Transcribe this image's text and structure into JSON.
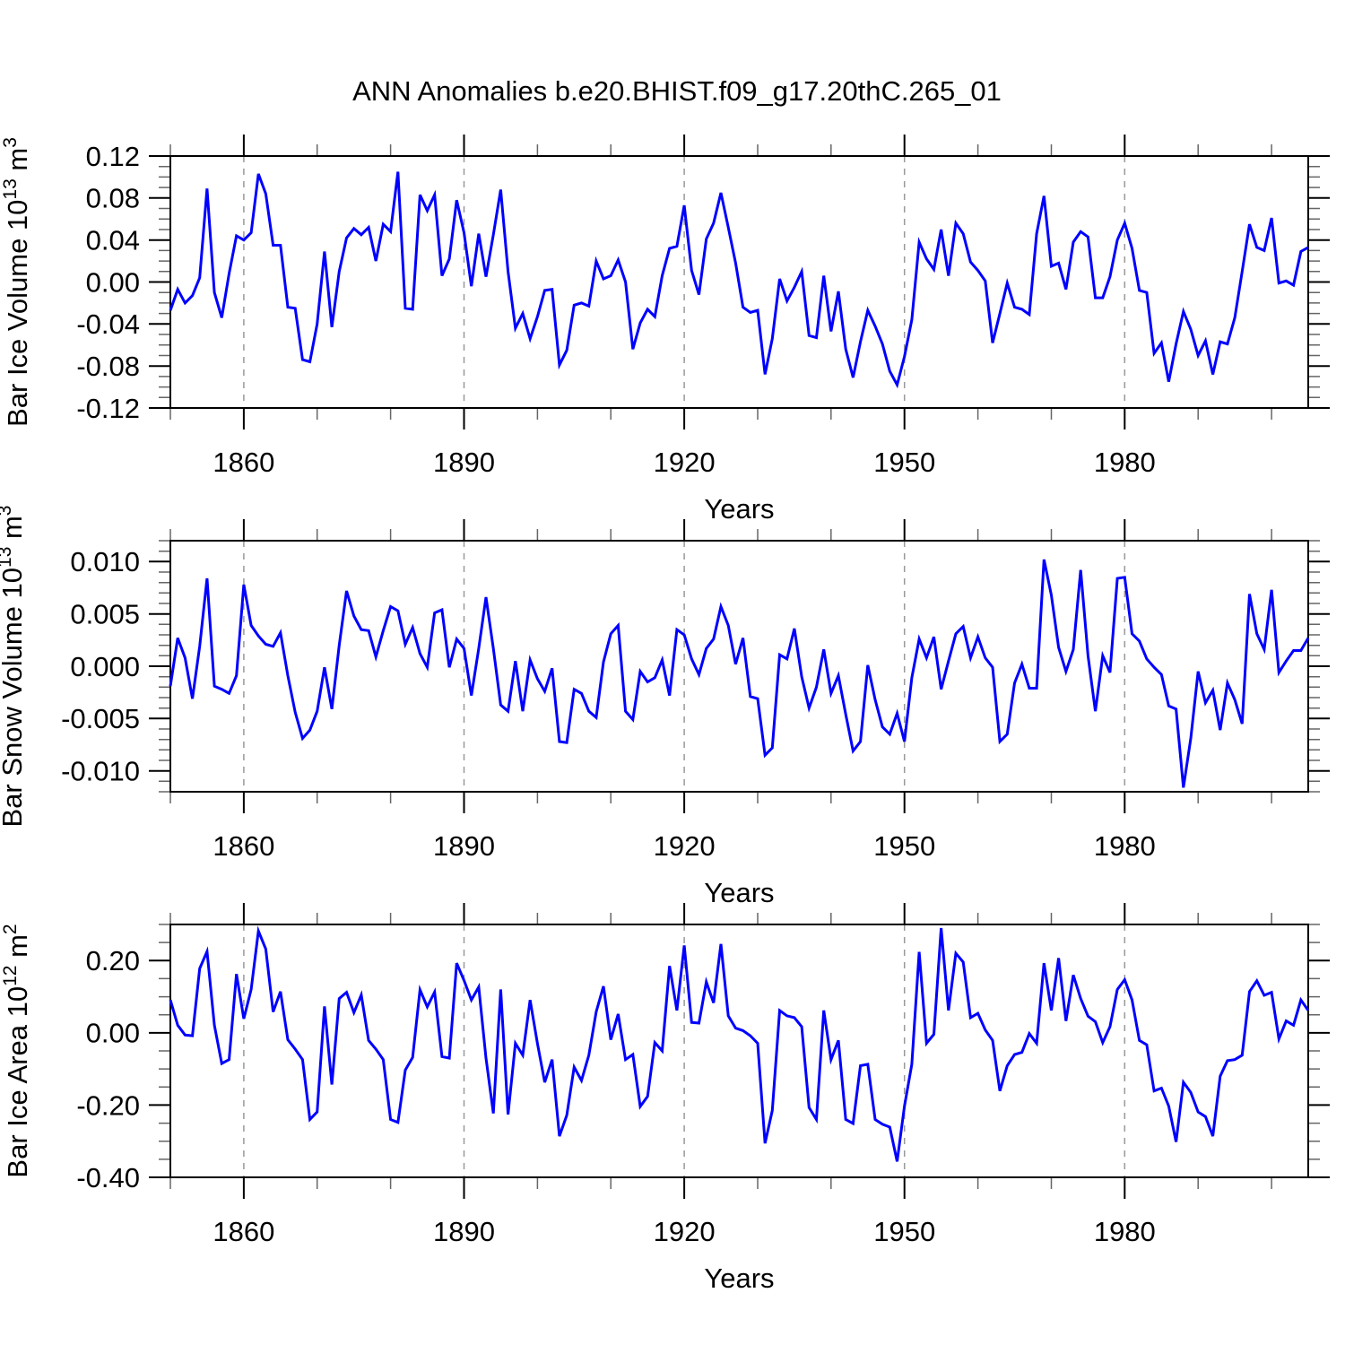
{
  "title": "ANN Anomalies b.e20.BHIST.f09_g17.20thC.265_01",
  "colors": {
    "line": "#0000ff",
    "frame": "#000000",
    "major_tick": "#000000",
    "minor_tick": "#666666",
    "grid": "#999999",
    "background": "#ffffff",
    "text": "#000000"
  },
  "chart_data": [
    {
      "type": "line",
      "series_name": "Bar Ice Volume",
      "ylabel": "Bar Ice Volume 10^13 m^3",
      "ylabel_segments": [
        {
          "t": "Bar Ice Volume 10",
          "sup": false
        },
        {
          "t": "13",
          "sup": true
        },
        {
          "t": " m",
          "sup": false
        },
        {
          "t": "3",
          "sup": true
        }
      ],
      "xlabel": "Years",
      "x_start": 1850,
      "x_end": 2005,
      "x_step": 1,
      "xlim": [
        1850,
        2005
      ],
      "ylim": [
        -0.12,
        0.12
      ],
      "yticks": [
        0.12,
        0.08,
        0.04,
        0.0,
        -0.04,
        -0.08,
        -0.12
      ],
      "ytick_labels": [
        "0.12",
        "0.08",
        "0.04",
        "0.00",
        "-0.04",
        "-0.08",
        "-0.12"
      ],
      "y_minor_step": 0.01,
      "xticks": [
        1860,
        1890,
        1920,
        1950,
        1980
      ],
      "xtick_labels": [
        "1860",
        "1890",
        "1920",
        "1950",
        "1980"
      ],
      "x_minor_step": 10,
      "grid": "dashed vertical lines at major x ticks",
      "values": [
        -0.027,
        -0.007,
        -0.02,
        -0.013,
        0.004,
        0.089,
        -0.01,
        -0.034,
        0.008,
        0.044,
        0.04,
        0.047,
        0.103,
        0.084,
        0.035,
        0.035,
        -0.024,
        -0.025,
        -0.074,
        -0.076,
        -0.04,
        0.029,
        -0.043,
        0.01,
        0.042,
        0.051,
        0.045,
        0.052,
        0.02,
        0.055,
        0.048,
        0.105,
        -0.025,
        -0.026,
        0.083,
        0.068,
        0.083,
        0.006,
        0.022,
        0.078,
        0.047,
        -0.004,
        0.046,
        0.005,
        0.045,
        0.088,
        0.01,
        -0.044,
        -0.03,
        -0.054,
        -0.033,
        -0.008,
        -0.007,
        -0.079,
        -0.065,
        -0.022,
        -0.02,
        -0.023,
        0.02,
        0.003,
        0.006,
        0.021,
        0.0,
        -0.064,
        -0.039,
        -0.026,
        -0.033,
        0.006,
        0.032,
        0.034,
        0.073,
        0.011,
        -0.012,
        0.041,
        0.056,
        0.085,
        0.052,
        0.018,
        -0.024,
        -0.029,
        -0.027,
        -0.088,
        -0.054,
        0.003,
        -0.018,
        -0.005,
        0.01,
        -0.051,
        -0.053,
        0.006,
        -0.047,
        -0.009,
        -0.064,
        -0.091,
        -0.057,
        -0.027,
        -0.042,
        -0.059,
        -0.085,
        -0.098,
        -0.071,
        -0.036,
        0.038,
        0.022,
        0.012,
        0.05,
        0.006,
        0.056,
        0.046,
        0.019,
        0.011,
        0.001,
        -0.058,
        -0.03,
        -0.001,
        -0.024,
        -0.026,
        -0.031,
        0.046,
        0.082,
        0.015,
        0.018,
        -0.007,
        0.038,
        0.048,
        0.043,
        -0.015,
        -0.015,
        0.005,
        0.04,
        0.056,
        0.032,
        -0.008,
        -0.01,
        -0.068,
        -0.058,
        -0.095,
        -0.059,
        -0.028,
        -0.045,
        -0.07,
        -0.056,
        -0.088,
        -0.057,
        -0.059,
        -0.034,
        0.01,
        0.055,
        0.033,
        0.03,
        0.061,
        -0.001,
        0.001,
        -0.003,
        0.029,
        0.033
      ]
    },
    {
      "type": "line",
      "series_name": "Bar Snow Volume",
      "ylabel": "Bar Snow Volume 10^13 m^3",
      "ylabel_segments": [
        {
          "t": "Bar Snow Volume 10",
          "sup": false
        },
        {
          "t": "13",
          "sup": true
        },
        {
          "t": " m",
          "sup": false
        },
        {
          "t": "3",
          "sup": true
        }
      ],
      "xlabel": "Years",
      "x_start": 1850,
      "x_end": 2005,
      "x_step": 1,
      "xlim": [
        1850,
        2005
      ],
      "ylim": [
        -0.012,
        0.012
      ],
      "yticks": [
        0.01,
        0.005,
        0.0,
        -0.005,
        -0.01
      ],
      "ytick_labels": [
        "0.010",
        "0.005",
        "0.000",
        "-0.005",
        "-0.010"
      ],
      "y_minor_step": 0.001,
      "xticks": [
        1860,
        1890,
        1920,
        1950,
        1980
      ],
      "xtick_labels": [
        "1860",
        "1890",
        "1920",
        "1950",
        "1980"
      ],
      "x_minor_step": 10,
      "grid": "dashed vertical lines at major x ticks",
      "values": [
        -0.0019,
        0.0027,
        0.0008,
        -0.0031,
        0.0019,
        0.0084,
        -0.0019,
        -0.0022,
        -0.0026,
        -0.0009,
        0.0078,
        0.0039,
        0.0029,
        0.0021,
        0.0019,
        0.0032,
        -0.0009,
        -0.0044,
        -0.0069,
        -0.0061,
        -0.0043,
        -0.0001,
        -0.0041,
        0.002,
        0.0072,
        0.0048,
        0.0035,
        0.0034,
        0.0009,
        0.0034,
        0.0057,
        0.0053,
        0.0021,
        0.0037,
        0.0012,
        -0.0001,
        0.0051,
        0.0054,
        -0.0001,
        0.0026,
        0.0017,
        -0.0028,
        0.0017,
        0.0066,
        0.0017,
        -0.0037,
        -0.0043,
        0.0005,
        -0.0043,
        0.0006,
        -0.0012,
        -0.0024,
        -0.0002,
        -0.0072,
        -0.0073,
        -0.0022,
        -0.0026,
        -0.0043,
        -0.0049,
        0.0004,
        0.0031,
        0.0039,
        -0.0043,
        -0.0051,
        -0.0005,
        -0.0015,
        -0.0011,
        0.0006,
        -0.0028,
        0.0035,
        0.003,
        0.0007,
        -0.0008,
        0.0017,
        0.0026,
        0.0057,
        0.0039,
        0.0002,
        0.0027,
        -0.0029,
        -0.0031,
        -0.0085,
        -0.0078,
        0.0011,
        0.0007,
        0.0036,
        -0.001,
        -0.004,
        -0.002,
        0.0016,
        -0.0026,
        -0.0009,
        -0.0046,
        -0.0081,
        -0.0072,
        0.0001,
        -0.0032,
        -0.0058,
        -0.0065,
        -0.0045,
        -0.0072,
        -0.0011,
        0.0026,
        0.0008,
        0.0028,
        -0.0022,
        0.0005,
        0.0031,
        0.0038,
        0.0008,
        0.0028,
        0.0008,
        -0.0001,
        -0.0072,
        -0.0065,
        -0.0016,
        0.0002,
        -0.0021,
        -0.0021,
        0.0102,
        0.0068,
        0.0018,
        -0.0005,
        0.0016,
        0.0092,
        0.001,
        -0.0043,
        0.001,
        -0.0006,
        0.0084,
        0.0085,
        0.0031,
        0.0024,
        0.0007,
        -0.0001,
        -0.0008,
        -0.0038,
        -0.0041,
        -0.0116,
        -0.0069,
        -0.0005,
        -0.0035,
        -0.0023,
        -0.0061,
        -0.0016,
        -0.0032,
        -0.0055,
        0.0069,
        0.0031,
        0.0016,
        0.0073,
        -0.0006,
        0.0005,
        0.0015,
        0.0015,
        0.0027
      ]
    },
    {
      "type": "line",
      "series_name": "Bar Ice Area",
      "ylabel": "Bar Ice Area 10^12 m^2",
      "ylabel_segments": [
        {
          "t": "Bar Ice Area 10",
          "sup": false
        },
        {
          "t": "12",
          "sup": true
        },
        {
          "t": " m",
          "sup": false
        },
        {
          "t": "2",
          "sup": true
        }
      ],
      "xlabel": "Years",
      "x_start": 1850,
      "x_end": 2005,
      "x_step": 1,
      "xlim": [
        1850,
        2005
      ],
      "ylim": [
        -0.4,
        0.3
      ],
      "yticks": [
        0.2,
        0.0,
        -0.2,
        -0.4
      ],
      "ytick_labels": [
        "0.20",
        "0.00",
        "-0.20",
        "-0.40"
      ],
      "y_minor_step": 0.05,
      "xticks": [
        1860,
        1890,
        1920,
        1950,
        1980
      ],
      "xtick_labels": [
        "1860",
        "1890",
        "1920",
        "1950",
        "1980"
      ],
      "x_minor_step": 10,
      "grid": "dashed vertical lines at major x ticks",
      "values": [
        0.091,
        0.021,
        -0.006,
        -0.008,
        0.178,
        0.225,
        0.021,
        -0.085,
        -0.074,
        0.163,
        0.039,
        0.12,
        0.282,
        0.232,
        0.058,
        0.114,
        -0.019,
        -0.045,
        -0.074,
        -0.24,
        -0.219,
        0.073,
        -0.143,
        0.095,
        0.112,
        0.056,
        0.105,
        -0.021,
        -0.045,
        -0.074,
        -0.24,
        -0.248,
        -0.103,
        -0.068,
        0.119,
        0.072,
        0.113,
        -0.066,
        -0.07,
        0.193,
        0.145,
        0.091,
        0.127,
        -0.07,
        -0.223,
        0.12,
        -0.226,
        -0.029,
        -0.062,
        0.091,
        -0.03,
        -0.137,
        -0.074,
        -0.286,
        -0.228,
        -0.095,
        -0.132,
        -0.062,
        0.058,
        0.129,
        -0.019,
        0.052,
        -0.074,
        -0.06,
        -0.204,
        -0.176,
        -0.027,
        -0.05,
        0.185,
        0.062,
        0.242,
        0.029,
        0.027,
        0.141,
        0.083,
        0.246,
        0.047,
        0.013,
        0.006,
        -0.008,
        -0.029,
        -0.306,
        -0.215,
        0.062,
        0.047,
        0.042,
        0.017,
        -0.207,
        -0.24,
        0.062,
        -0.074,
        -0.021,
        -0.24,
        -0.251,
        -0.091,
        -0.087,
        -0.24,
        -0.253,
        -0.261,
        -0.356,
        -0.203,
        -0.087,
        0.224,
        -0.029,
        -0.004,
        0.29,
        0.062,
        0.22,
        0.196,
        0.042,
        0.054,
        0.008,
        -0.021,
        -0.161,
        -0.091,
        -0.06,
        -0.054,
        -0.002,
        -0.029,
        0.193,
        0.062,
        0.207,
        0.033,
        0.16,
        0.095,
        0.046,
        0.031,
        -0.027,
        0.017,
        0.12,
        0.147,
        0.091,
        -0.021,
        -0.033,
        -0.161,
        -0.153,
        -0.203,
        -0.302,
        -0.137,
        -0.165,
        -0.219,
        -0.232,
        -0.286,
        -0.12,
        -0.077,
        -0.074,
        -0.062,
        0.114,
        0.144,
        0.104,
        0.112,
        -0.017,
        0.033,
        0.021,
        0.091,
        0.062
      ]
    }
  ]
}
